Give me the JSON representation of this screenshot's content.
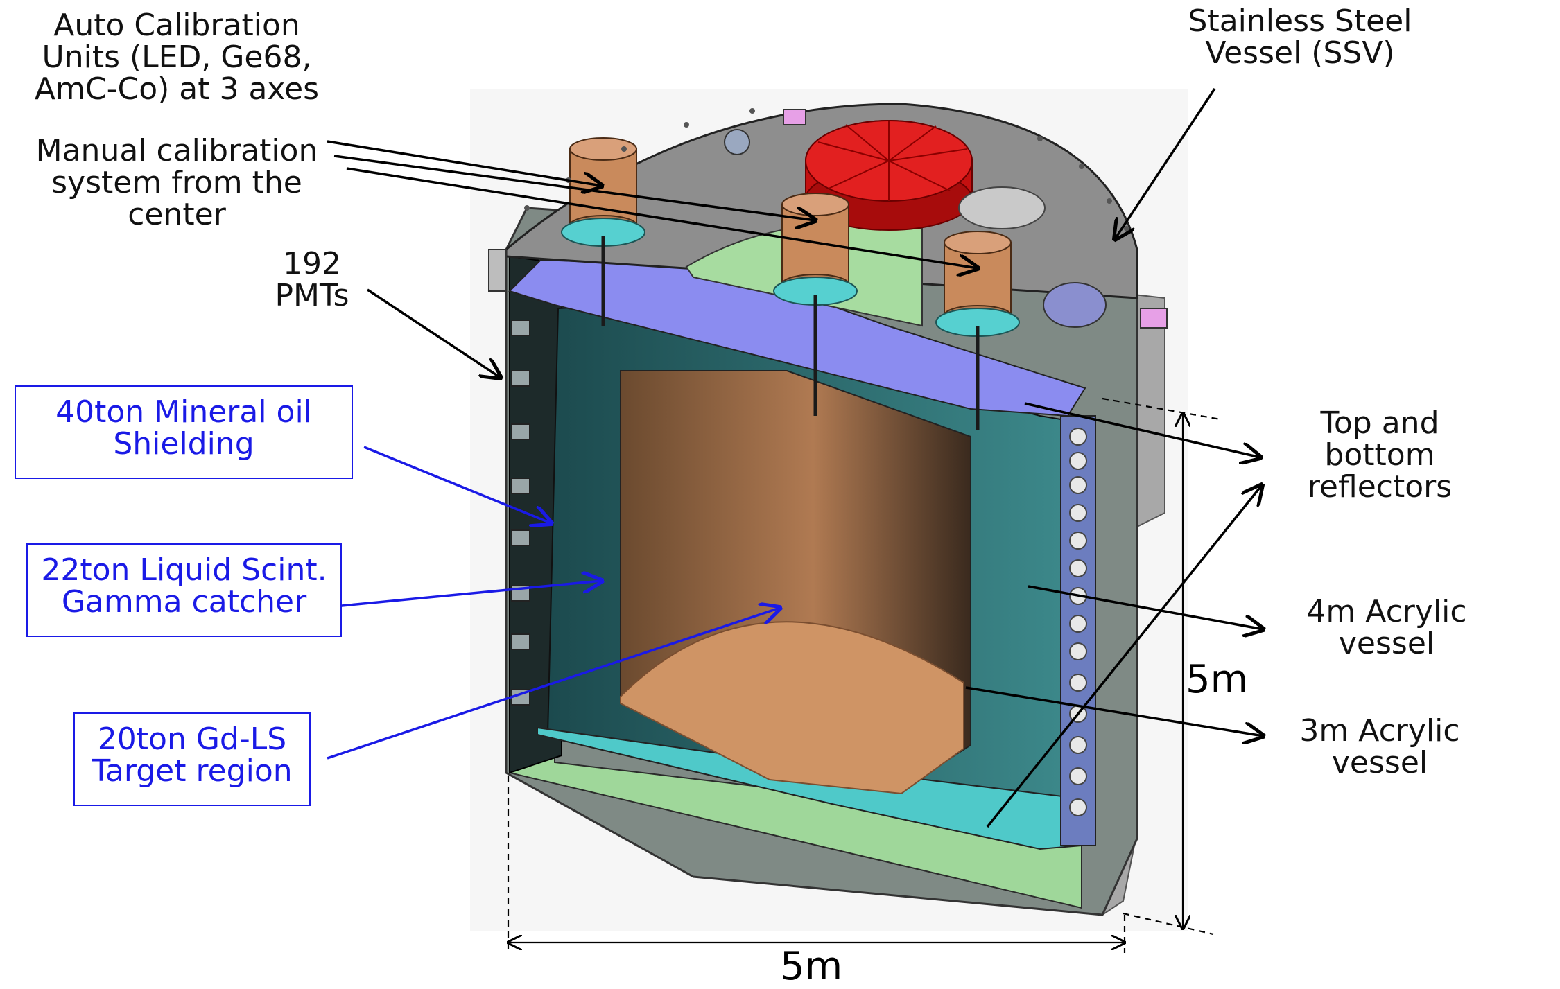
{
  "labels": {
    "auto_calibration": "Auto Calibration\nUnits (LED, Ge68,\nAmC-Co) at 3 axes",
    "stainless_steel": "Stainless Steel\nVessel (SSV)",
    "manual_calibration": "Manual calibration\nsystem from the\ncenter",
    "pmts": "192\nPMTs",
    "mineral_oil": "40ton Mineral oil\nShielding",
    "liquid_scint": "22ton Liquid Scint.\nGamma catcher",
    "gd_ls": "20ton Gd-LS\nTarget region",
    "reflectors": "Top and\nbottom\nreflectors",
    "acrylic_4m": "4m Acrylic\nvessel",
    "acrylic_3m": "3m Acrylic\nvessel",
    "height": "5m",
    "width": "5m"
  },
  "colors": {
    "steel": "#8c8c8c",
    "steel_dark": "#5e5e5e",
    "red_lid": "#e01818",
    "copper": "#c98a5c",
    "teal": "#4fc9c9",
    "dark_teal": "#1f4f52",
    "green": "#9fd79a",
    "blue_reflector": "#8b8cf0",
    "label_blue": "#1a1ae6"
  }
}
